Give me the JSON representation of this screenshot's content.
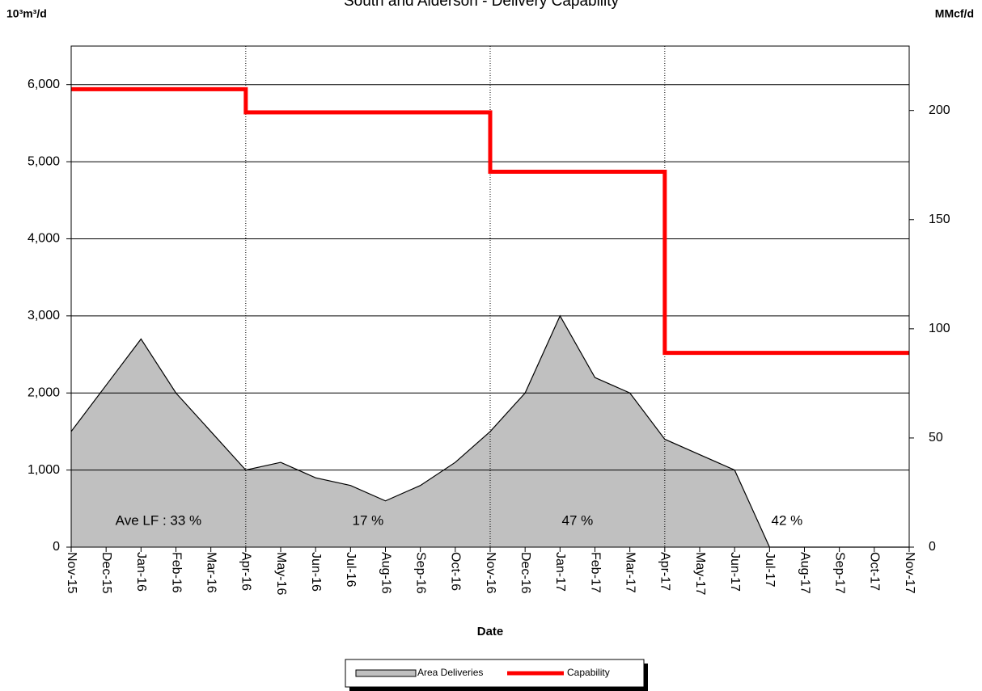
{
  "chart_data": {
    "type": "area-line",
    "title": "South and Alderson - Delivery Capability",
    "xlabel": "Date",
    "ylabel": "10³m³/d",
    "y2label": "MMcf/d",
    "categories": [
      "Nov-15",
      "Dec-15",
      "Jan-16",
      "Feb-16",
      "Mar-16",
      "Apr-16",
      "May-16",
      "Jun-16",
      "Jul-16",
      "Aug-16",
      "Sep-16",
      "Oct-16",
      "Nov-16",
      "Dec-16",
      "Jan-17",
      "Feb-17",
      "Mar-17",
      "Apr-17",
      "May-17",
      "Jun-17",
      "Jul-17",
      "Aug-17",
      "Sep-17",
      "Oct-17",
      "Nov-17"
    ],
    "series": [
      {
        "name": "Area Deliveries",
        "type": "area",
        "color": "#c0c0c0",
        "values": [
          1500,
          2100,
          2700,
          2000,
          1500,
          1000,
          1100,
          900,
          800,
          600,
          800,
          1100,
          1500,
          2000,
          3000,
          2200,
          2000,
          1400,
          1200,
          1000,
          0,
          0,
          0,
          0,
          0
        ]
      },
      {
        "name": "Capability",
        "type": "step",
        "color": "#ff0000",
        "values": [
          5940,
          5940,
          5940,
          5940,
          5940,
          5640,
          5640,
          5640,
          5640,
          5640,
          5640,
          5640,
          4870,
          4870,
          4870,
          4870,
          4870,
          2520,
          2520,
          2520,
          2520,
          2520,
          2520,
          2520,
          2520
        ]
      }
    ],
    "annotations": [
      "Ave LF : 33 %",
      "17 %",
      "47 %",
      "42 %"
    ],
    "ylim": [
      0,
      6500
    ],
    "yticks": [
      0,
      {
        "value": 1000,
        "label": "1,000"
      },
      {
        "value": 2000,
        "label": "2,000"
      },
      {
        "value": 3000,
        "label": "3,000"
      },
      {
        "value": 4000,
        "label": "4,000"
      },
      {
        "value": 5000,
        "label": "5,000"
      },
      {
        "value": 6000,
        "label": "6,000"
      }
    ],
    "y2lim": [
      0,
      229.5
    ],
    "y2ticks": [
      0,
      50,
      100,
      150,
      200
    ],
    "grid": true
  }
}
